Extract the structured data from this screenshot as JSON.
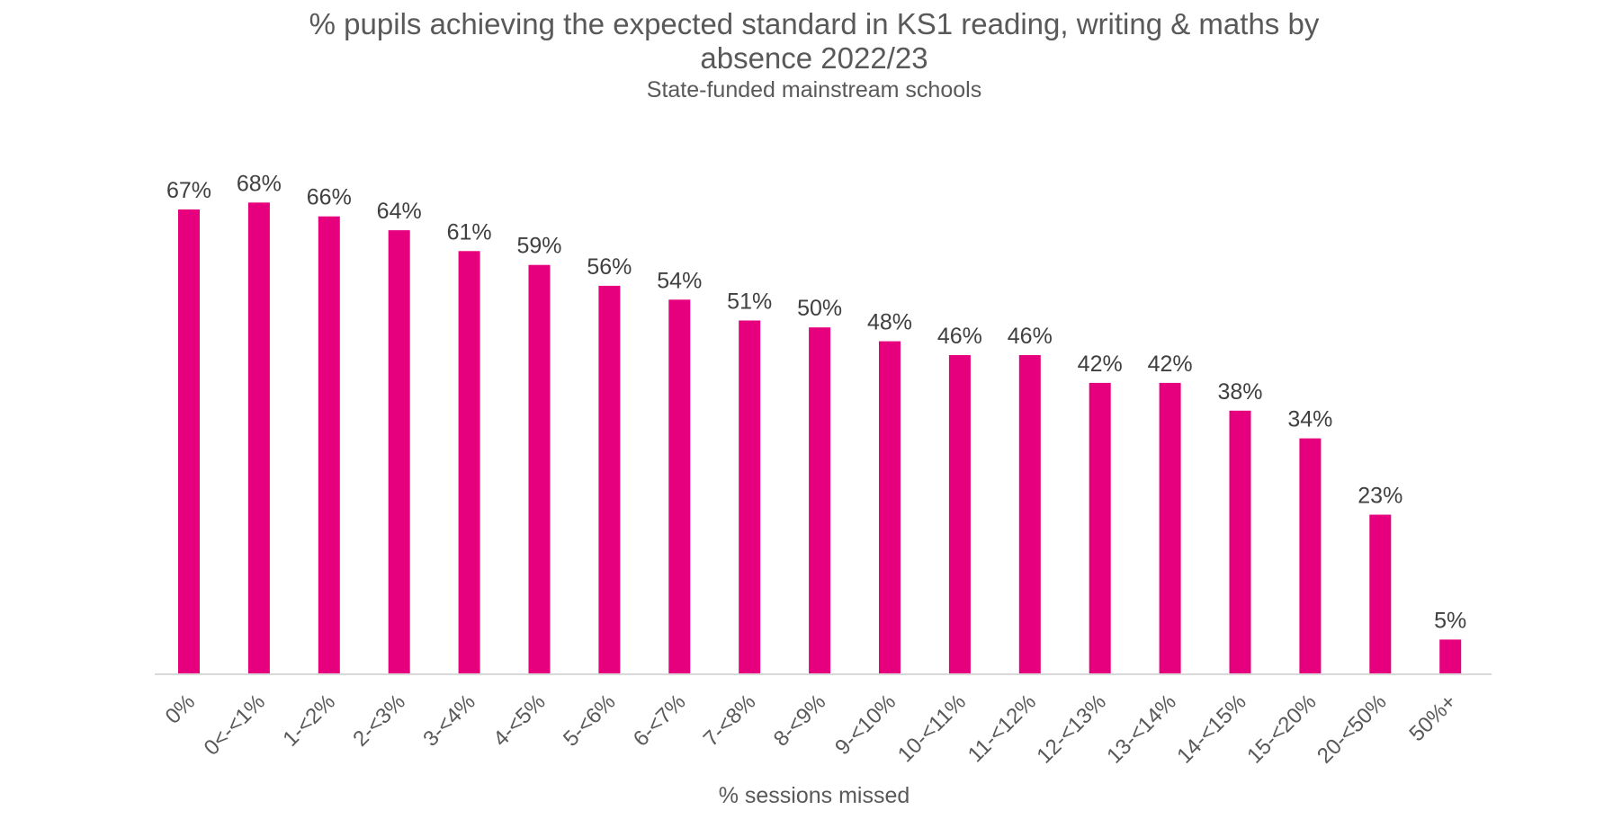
{
  "chart_data": {
    "type": "bar",
    "title": "% pupils achieving the expected standard in KS1 reading, writing & maths by absence 2022/23",
    "title_lines": [
      "% pupils achieving the expected standard in KS1 reading, writing & maths by",
      "absence 2022/23"
    ],
    "subtitle": "State-funded mainstream schools",
    "xlabel": "% sessions missed",
    "ylabel": "",
    "categories": [
      "0%",
      "0<-<1%",
      "1-<2%",
      "2-<3%",
      "3-<4%",
      "4-<5%",
      "5-<6%",
      "6-<7%",
      "7-<8%",
      "8-<9%",
      "9-<10%",
      "10-<11%",
      "11-<12%",
      "12-<13%",
      "13-<14%",
      "14-<15%",
      "15-<20%",
      "20-<50%",
      "50%+"
    ],
    "values": [
      67,
      68,
      66,
      64,
      61,
      59,
      56,
      54,
      51,
      50,
      48,
      46,
      46,
      42,
      42,
      38,
      34,
      23,
      5
    ],
    "data_labels": [
      "67%",
      "68%",
      "66%",
      "64%",
      "61%",
      "59%",
      "56%",
      "54%",
      "51%",
      "50%",
      "48%",
      "46%",
      "46%",
      "42%",
      "42%",
      "38%",
      "34%",
      "23%",
      "5%"
    ],
    "ylim": [
      0,
      100
    ],
    "grid": false,
    "legend": "none",
    "bar_color": "#E6007E",
    "axis_color": "#D9D9D9"
  }
}
